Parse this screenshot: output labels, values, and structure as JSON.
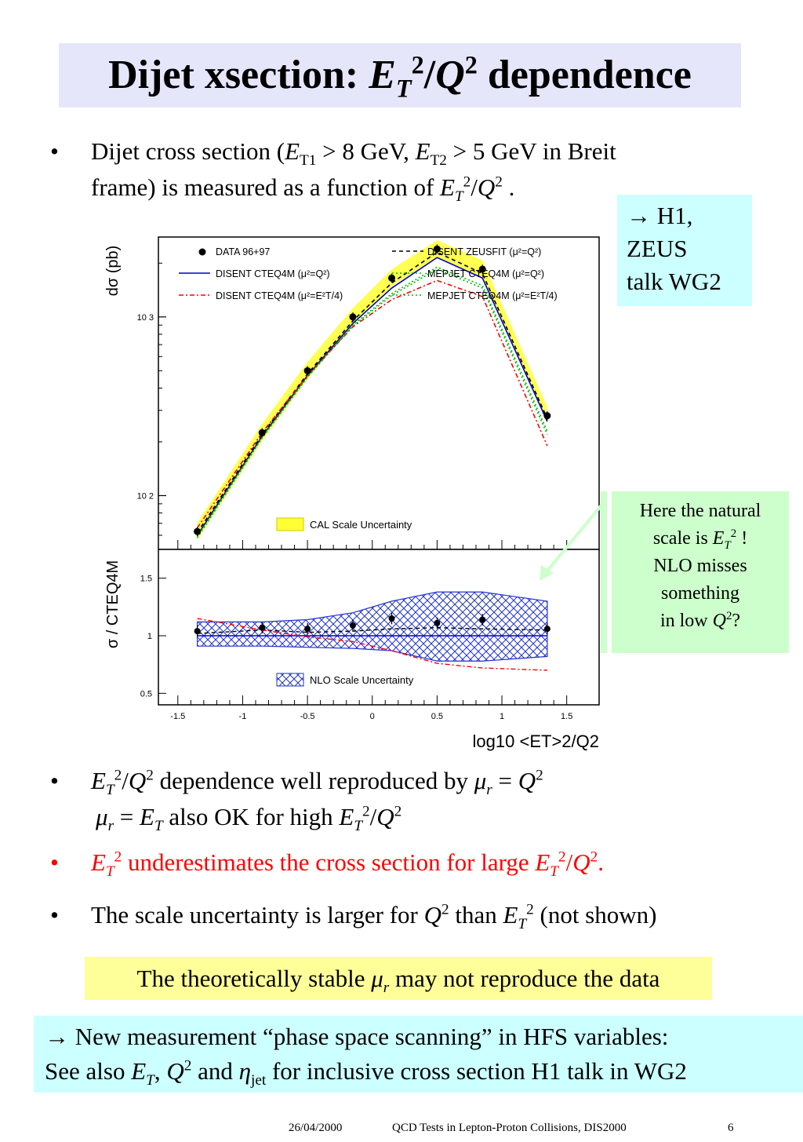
{
  "title": {
    "pre": "Dijet xsection: ",
    "et": "E",
    "t": "T",
    "two": "2",
    "slash": "/",
    "q": "Q",
    "two2": "2",
    "post": " dependence"
  },
  "bullet_mark": "•",
  "bullet1": {
    "line1_a": "Dijet cross section (",
    "e1": "E",
    "t1": "T1",
    "line1_b": " > 8 GeV, ",
    "e2": "E",
    "t2": "T2",
    "line1_c": " > 5 GeV in Breit",
    "line2_a": "frame) is measured as a function of ",
    "e3": "E",
    "t3": "T",
    "s3": "2",
    "slash": "/",
    "q": "Q",
    "s4": "2",
    "end": " ."
  },
  "callout_h1": {
    "arrow": "→",
    "line1": " H1,",
    "line2": "ZEUS",
    "line3": "talk WG2"
  },
  "callout_natural": {
    "line1": "Here the natural",
    "line2a": "scale is ",
    "e": "E",
    "t": "T",
    "s": "2",
    "excl": " !",
    "line3": "NLO misses",
    "line4": "something",
    "line5a": "in low ",
    "q": "Q",
    "q2": "2",
    "qmark": "?"
  },
  "bullet2": {
    "e": "E",
    "t": "T",
    "s": "2",
    "slash": "/",
    "q": "Q",
    "s2": "2",
    "text": " dependence well reproduced by  ",
    "mu": "μ",
    "r": "r",
    "eq": " = ",
    "q3": "Q",
    "s3": "2",
    "line2_mu": "μ",
    "line2_r": "r",
    "line2_eq": " = ",
    "line2_e": "E",
    "line2_t": "T",
    "line2_text": " also OK for high ",
    "line2_e2": "E",
    "line2_t2": "T",
    "line2_s": "2",
    "line2_slash": "/",
    "line2_q": "Q",
    "line2_s2": "2"
  },
  "bullet3": {
    "e": "E",
    "t": "T",
    "s": "2",
    "text": " underestimates the cross section for large ",
    "e2": "E",
    "t2": "T",
    "s2": "2",
    "slash": "/",
    "q": "Q",
    "s3": "2",
    "end": "."
  },
  "bullet4": {
    "text_a": "The scale uncertainty is larger for ",
    "q": "Q",
    "s": "2",
    "text_b": " than ",
    "e": "E",
    "t": "T",
    "s2": "2",
    "text_c": " (not shown)"
  },
  "yellow_box": {
    "a": "The theoretically stable ",
    "mu": "μ",
    "r": "r",
    "b": " may not reproduce the data"
  },
  "cyan_box": {
    "arrow": "→",
    "line1": " New measurement “phase space scanning” in HFS variables:",
    "line2_a": "See also ",
    "e": "E",
    "t": "T",
    "comma": ", ",
    "q": "Q",
    "s": "2",
    "and": " and  ",
    "eta": "η",
    "jet": "jet",
    "line2_b": " for inclusive cross section H1 talk in WG2"
  },
  "footer": {
    "date": "26/04/2000",
    "conf": "QCD Tests in Lepton-Proton Collisions, DIS2000",
    "page": "6"
  },
  "chart_data": [
    {
      "type": "line",
      "panel": "upper",
      "ylabel": "dσ (pb)",
      "yscale": "log",
      "ylim": [
        50,
        2800
      ],
      "xlim": [
        -1.65,
        1.75
      ],
      "ytick_labels": [
        "10 3",
        "10 2"
      ],
      "ytick_values": [
        1000,
        100
      ],
      "band_label": "CAL Scale Uncertainty",
      "legend": [
        {
          "name": "DATA 96+97",
          "style": "marker",
          "color": "#000000"
        },
        {
          "name": "DISENT ZEUSFIT (μ²=Q²)",
          "style": "dashed",
          "color": "#000000"
        },
        {
          "name": "DISENT CTEQ4M (μ²=Q²)",
          "style": "solid",
          "color": "#0000cc"
        },
        {
          "name": "MEPJET CTEQ4M (μ²=Q²)",
          "style": "dotted",
          "color": "#00bb00"
        },
        {
          "name": "DISENT CTEQ4M (μ²=E²T/4)",
          "style": "dashdot",
          "color": "#ff0000"
        },
        {
          "name": "MEPJET CTEQ4M (μ²=E²T/4)",
          "style": "dotted",
          "color": "#00bb00"
        }
      ],
      "x": [
        -1.35,
        -0.85,
        -0.5,
        -0.15,
        0.15,
        0.5,
        0.85,
        1.35
      ],
      "data": [
        63,
        225,
        500,
        1000,
        1650,
        2400,
        1850,
        280
      ],
      "series": [
        {
          "name": "DISENT ZEUSFIT (μ²=Q²)",
          "values": [
            62,
            220,
            480,
            950,
            1550,
            2300,
            1750,
            270
          ]
        },
        {
          "name": "DISENT CTEQ4M (μ²=Q²)",
          "values": [
            60,
            215,
            470,
            920,
            1450,
            2150,
            1650,
            260
          ]
        },
        {
          "name": "MEPJET CTEQ4M (μ²=Q²)",
          "values": [
            58,
            210,
            460,
            900,
            1350,
            1900,
            1500,
            230
          ]
        },
        {
          "name": "DISENT CTEQ4M (μ²=E²T/4)",
          "values": [
            66,
            225,
            470,
            880,
            1250,
            1600,
            1300,
            190
          ]
        },
        {
          "name": "MEPJET CTEQ4M (μ²=E²T/4)",
          "values": [
            59,
            212,
            462,
            890,
            1320,
            1850,
            1450,
            220
          ]
        }
      ]
    },
    {
      "type": "line",
      "panel": "lower",
      "ylabel": "σ / CTEQ4M",
      "ylim": [
        0.4,
        1.75
      ],
      "xlim": [
        -1.65,
        1.75
      ],
      "yticks": [
        0.5,
        1,
        1.5
      ],
      "ytick_labels": [
        "0.5",
        "1",
        "1.5"
      ],
      "xticks": [
        -1.5,
        -1,
        -0.5,
        0,
        0.5,
        1,
        1.5
      ],
      "xtick_labels": [
        "-1.5",
        "-1",
        "-0.5",
        "0",
        "0.5",
        "1",
        "1.5"
      ],
      "xlabel": "log10 <ET>2/Q2",
      "band_label": "NLO Scale Uncertainty",
      "x": [
        -1.35,
        -0.85,
        -0.5,
        -0.15,
        0.15,
        0.5,
        0.85,
        1.35
      ],
      "data": [
        1.04,
        1.07,
        1.06,
        1.09,
        1.15,
        1.11,
        1.14,
        1.06
      ],
      "band_upper": [
        1.12,
        1.12,
        1.14,
        1.2,
        1.3,
        1.38,
        1.38,
        1.3
      ],
      "band_lower": [
        0.91,
        0.91,
        0.9,
        0.89,
        0.87,
        0.78,
        0.78,
        0.82
      ],
      "series": [
        {
          "name": "DISENT ZEUSFIT (μ²=Q²)",
          "values": [
            1.02,
            1.05,
            1.03,
            1.04,
            1.06,
            1.07,
            1.06,
            1.05
          ]
        },
        {
          "name": "DISENT CTEQ4M (μ²=Q²)",
          "values": [
            1,
            1,
            1,
            1,
            1,
            1,
            1,
            1
          ]
        },
        {
          "name": "DISENT CTEQ4M (μ²=E²T/4)",
          "values": [
            1.15,
            1.05,
            0.99,
            0.95,
            0.87,
            0.76,
            0.72,
            0.7
          ]
        }
      ]
    }
  ]
}
